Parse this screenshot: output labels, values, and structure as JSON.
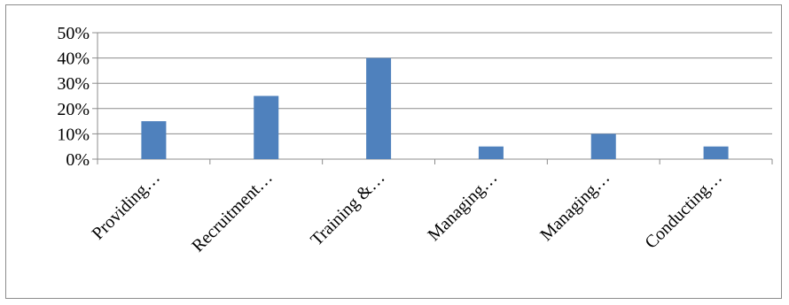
{
  "chart_data": {
    "type": "bar",
    "categories": [
      "Providing…",
      "Recruitment…",
      "Training &…",
      "Managing…",
      "Managing…",
      "Conducting…"
    ],
    "values": [
      15,
      25,
      40,
      5,
      10,
      5
    ],
    "y_ticks": [
      "0%",
      "10%",
      "20%",
      "30%",
      "40%",
      "50%"
    ],
    "ylim": [
      0,
      50
    ],
    "grid": true,
    "legend": "none",
    "bar_color": "#4f81bd",
    "gridline_color": "#8c8c8c"
  }
}
